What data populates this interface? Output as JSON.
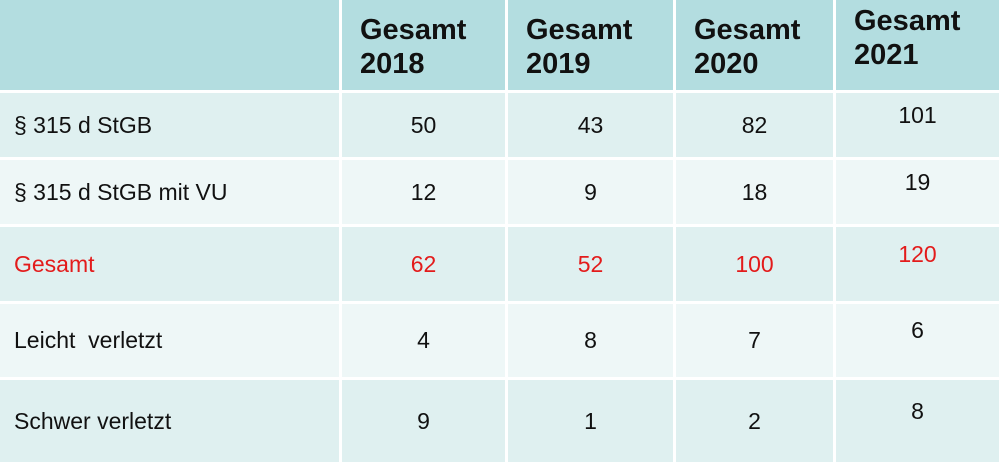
{
  "table": {
    "header": {
      "corner": "",
      "columns": [
        {
          "line1": "Gesamt",
          "line2": "2018"
        },
        {
          "line1": "Gesamt",
          "line2": "2019"
        },
        {
          "line1": "Gesamt",
          "line2": "2020"
        },
        {
          "line1": "Gesamt",
          "line2": "2021"
        }
      ]
    },
    "rows": [
      {
        "label": "§ 315 d StGB",
        "values": [
          "50",
          "43",
          "82",
          "101"
        ]
      },
      {
        "label": "§ 315 d StGB mit VU",
        "values": [
          "12",
          "9",
          "18",
          "19"
        ]
      },
      {
        "label": "Gesamt",
        "values": [
          "62",
          "52",
          "100",
          "120"
        ],
        "highlight_color": "#e31b1b"
      },
      {
        "label": "Leicht  verletzt",
        "values": [
          "4",
          "8",
          "7",
          "6"
        ]
      },
      {
        "label": "Schwer verletzt",
        "values": [
          "9",
          "1",
          "2",
          "8"
        ]
      }
    ],
    "colors": {
      "header_bg": "#b3dde0",
      "row_bg_dark": "#dff0f0",
      "row_bg_light": "#eef7f7",
      "total_text": "#e31b1b"
    }
  }
}
